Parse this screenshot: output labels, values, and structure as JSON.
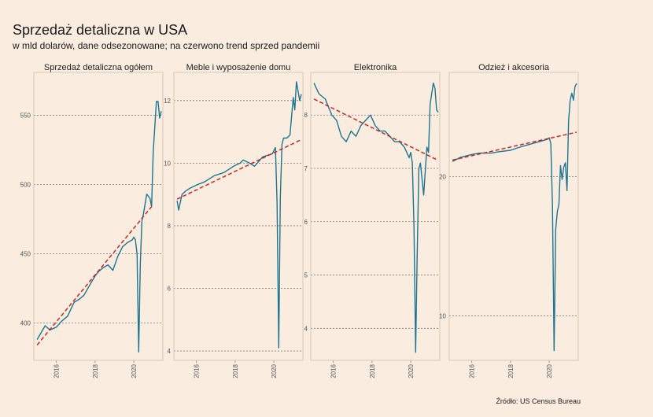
{
  "title": "Sprzedaż detaliczna w USA",
  "subtitle": "w mld dolarów, dane odsezonowane; na czerwono trend sprzed pandemii",
  "source": "Źródło: US Census Bureau",
  "colors": {
    "background": "#faede0",
    "series": "#1c7592",
    "trend": "#d01818"
  },
  "chart_data": [
    {
      "type": "line",
      "title": "Sprzedaż detaliczna ogółem",
      "xlim": [
        "2014-11",
        "2021-07"
      ],
      "ylim": [
        373,
        581
      ],
      "yticks": [
        400,
        450,
        500,
        550
      ],
      "ytick_labels": [
        "400",
        "450",
        "500",
        "550"
      ],
      "xticks": [
        "2016",
        "2018",
        "2020"
      ],
      "series": [
        {
          "x": [
            "2015-01",
            "2015-03",
            "2015-06",
            "2015-09",
            "2016-01",
            "2016-04",
            "2016-08",
            "2016-12",
            "2017-03",
            "2017-06",
            "2017-09",
            "2018-01",
            "2018-03",
            "2018-06",
            "2018-09",
            "2018-12",
            "2019-03",
            "2019-06",
            "2019-09",
            "2019-12",
            "2020-01",
            "2020-02",
            "2020-03",
            "2020-04",
            "2020-05",
            "2020-06",
            "2020-07",
            "2020-09",
            "2020-11",
            "2020-12",
            "2021-01",
            "2021-03",
            "2021-04",
            "2021-05",
            "2021-06"
          ],
          "values": [
            388,
            392,
            398,
            395,
            397,
            401,
            405,
            415,
            417,
            420,
            426,
            434,
            437,
            440,
            442,
            438,
            448,
            455,
            458,
            460,
            462,
            460,
            450,
            379,
            442,
            474,
            479,
            493,
            490,
            484,
            523,
            560,
            560,
            548,
            553
          ]
        }
      ],
      "trend": {
        "x": [
          "2015-01",
          "2020-12"
        ],
        "values": [
          384,
          484
        ]
      }
    },
    {
      "type": "line",
      "title": "Meble i wyposażenie domu",
      "xlim": [
        "2014-11",
        "2021-07"
      ],
      "ylim": [
        3.7,
        12.9
      ],
      "yticks": [
        4,
        6,
        8,
        10,
        12
      ],
      "ytick_labels": [
        "4",
        "6",
        "8",
        "10",
        "12"
      ],
      "xticks": [
        "2016",
        "2018",
        "2020"
      ],
      "series": [
        {
          "x": [
            "2015-01",
            "2015-02",
            "2015-04",
            "2015-06",
            "2015-09",
            "2016-01",
            "2016-06",
            "2016-12",
            "2017-06",
            "2017-12",
            "2018-04",
            "2018-06",
            "2018-10",
            "2019-01",
            "2019-06",
            "2019-12",
            "2020-01",
            "2020-02",
            "2020-03",
            "2020-04",
            "2020-05",
            "2020-06",
            "2020-07",
            "2020-09",
            "2020-11",
            "2021-01",
            "2021-02",
            "2021-03",
            "2021-04",
            "2021-05",
            "2021-06"
          ],
          "values": [
            8.8,
            8.5,
            9.0,
            9.1,
            9.2,
            9.3,
            9.4,
            9.6,
            9.7,
            9.9,
            10.0,
            10.1,
            10.0,
            9.9,
            10.2,
            10.3,
            10.4,
            10.5,
            8.7,
            4.1,
            8.9,
            10.6,
            10.8,
            10.8,
            10.9,
            12.1,
            11.7,
            12.6,
            12.3,
            12.0,
            12.2
          ]
        }
      ],
      "trend": {
        "x": [
          "2015-01",
          "2021-06"
        ],
        "values": [
          8.85,
          10.75
        ]
      }
    },
    {
      "type": "line",
      "title": "Elektronika",
      "xlim": [
        "2014-11",
        "2021-07"
      ],
      "ylim": [
        3.4,
        8.8
      ],
      "yticks": [
        4,
        5,
        6,
        7,
        8
      ],
      "ytick_labels": [
        "4",
        "5",
        "6",
        "7",
        "8"
      ],
      "xticks": [
        "2016",
        "2018",
        "2020"
      ],
      "series": [
        {
          "x": [
            "2015-01",
            "2015-04",
            "2015-08",
            "2015-12",
            "2016-03",
            "2016-06",
            "2016-09",
            "2016-12",
            "2017-03",
            "2017-06",
            "2017-09",
            "2017-12",
            "2018-03",
            "2018-06",
            "2018-09",
            "2018-12",
            "2019-03",
            "2019-06",
            "2019-09",
            "2019-12",
            "2020-01",
            "2020-02",
            "2020-03",
            "2020-04",
            "2020-05",
            "2020-06",
            "2020-07",
            "2020-09",
            "2020-11",
            "2020-12",
            "2021-01",
            "2021-02",
            "2021-03",
            "2021-04",
            "2021-05",
            "2021-06"
          ],
          "values": [
            8.6,
            8.4,
            8.3,
            8.0,
            7.9,
            7.6,
            7.5,
            7.7,
            7.6,
            7.8,
            7.9,
            8.0,
            7.8,
            7.7,
            7.7,
            7.6,
            7.5,
            7.5,
            7.4,
            7.2,
            7.3,
            7.1,
            5.9,
            3.55,
            5.4,
            7.0,
            7.1,
            6.5,
            7.4,
            7.3,
            8.2,
            8.4,
            8.6,
            8.5,
            8.1,
            8.05
          ]
        }
      ],
      "trend": {
        "x": [
          "2015-01",
          "2021-06"
        ],
        "values": [
          8.3,
          7.15
        ]
      }
    },
    {
      "type": "line",
      "title": "Odzież i akcesoria",
      "xlim": [
        "2014-11",
        "2021-07"
      ],
      "ylim": [
        6.8,
        27.5
      ],
      "yticks": [
        10,
        20
      ],
      "ytick_labels": [
        "10",
        "20"
      ],
      "xticks": [
        "2016",
        "2018",
        "2020"
      ],
      "series": [
        {
          "x": [
            "2015-01",
            "2015-06",
            "2016-01",
            "2016-06",
            "2017-01",
            "2017-06",
            "2018-01",
            "2018-06",
            "2018-12",
            "2019-06",
            "2019-12",
            "2020-01",
            "2020-02",
            "2020-03",
            "2020-04",
            "2020-05",
            "2020-06",
            "2020-07",
            "2020-08",
            "2020-09",
            "2020-10",
            "2020-11",
            "2020-12",
            "2021-01",
            "2021-02",
            "2021-03",
            "2021-04",
            "2021-05",
            "2021-06"
          ],
          "values": [
            21.1,
            21.4,
            21.6,
            21.7,
            21.7,
            21.8,
            21.9,
            22.1,
            22.3,
            22.5,
            22.7,
            22.8,
            22.4,
            18.0,
            7.5,
            16.2,
            17.5,
            18.0,
            20.8,
            19.8,
            20.7,
            21.0,
            19.0,
            24.0,
            25.5,
            26.0,
            25.5,
            26.5,
            26.7
          ]
        }
      ],
      "trend": {
        "x": [
          "2015-01",
          "2021-06"
        ],
        "values": [
          21.2,
          23.2
        ]
      }
    }
  ]
}
